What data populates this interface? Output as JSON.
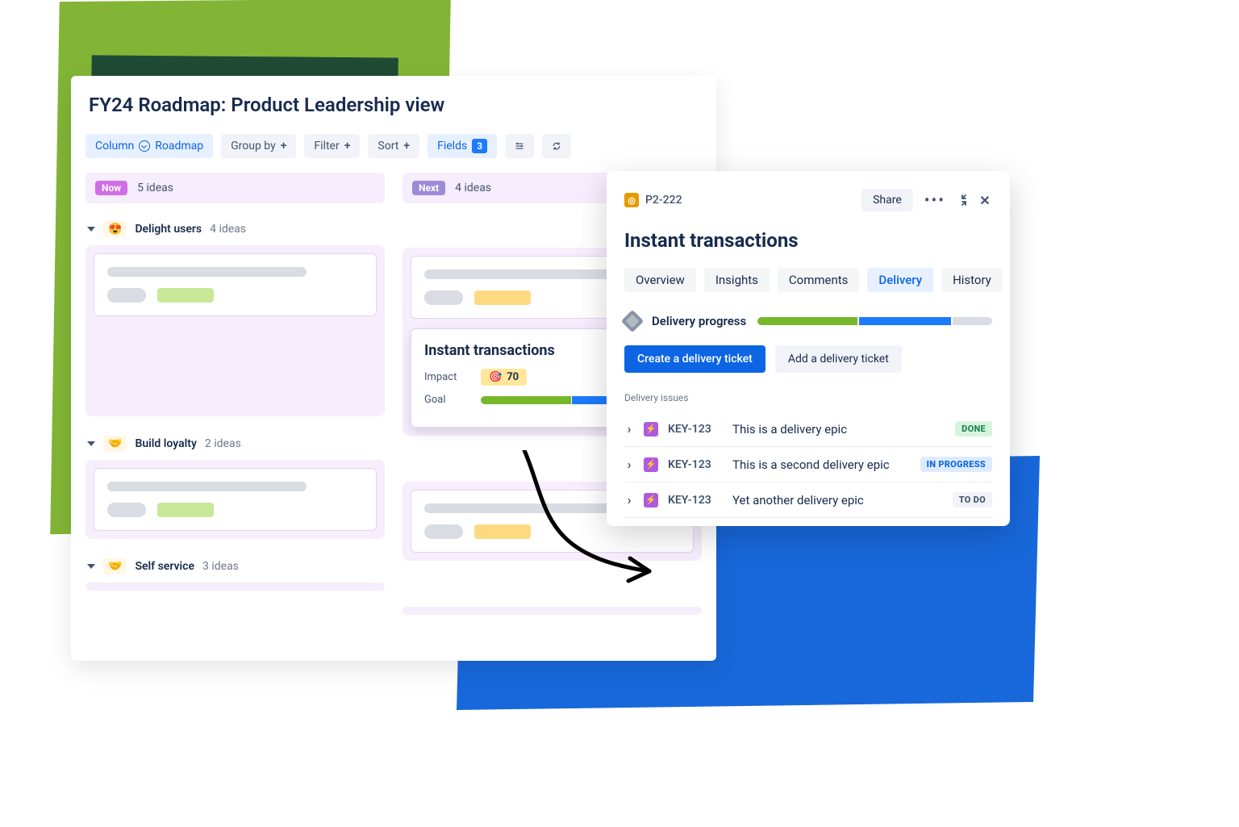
{
  "bg": {
    "green_light": "#82b536",
    "green_dark": "#1f4a34",
    "blue": "#1868db"
  },
  "board": {
    "title": "FY24 Roadmap: Product Leadership view",
    "toolbar": {
      "column": {
        "label": "Column",
        "value": "Roadmap"
      },
      "groupby": {
        "label": "Group by"
      },
      "filter": {
        "label": "Filter"
      },
      "sort": {
        "label": "Sort"
      },
      "fields": {
        "label": "Fields",
        "count": "3"
      }
    },
    "columns": [
      {
        "tag": "Now",
        "tag_color": "#d06ee6",
        "meta": "5 ideas"
      },
      {
        "tag": "Next",
        "tag_color": "#9b8ad6",
        "meta": "4 ideas"
      }
    ],
    "groups": [
      {
        "emoji": "😍",
        "emoji_bg": "#fff6e6",
        "name": "Delight users",
        "count": "4 ideas"
      },
      {
        "emoji": "🤝",
        "emoji_bg": "#fef3e6",
        "name": "Build loyalty",
        "count": "2 ideas"
      },
      {
        "emoji": "🤝",
        "emoji_bg": "#fef3e6",
        "name": "Self service",
        "count": "3 ideas"
      }
    ],
    "placeholder_colors": {
      "line": "#d9dce3",
      "pill_green": "#c9e897",
      "pill_yellow": "#fdd982"
    },
    "instant_card": {
      "title": "Instant transactions",
      "impact_label": "Impact",
      "impact_value": "70",
      "impact_icon": "🎯",
      "impact_bg": "#ffe69b",
      "goal_label": "Goal",
      "goal_segments": [
        {
          "color": "#76b82a",
          "pct": 63
        },
        {
          "color": "#1d7afc",
          "pct": 27
        },
        {
          "color": "#d9dce3",
          "pct": 10
        }
      ]
    },
    "zone_bg": "#f6edfd",
    "col_head_bg": "#f6edfd"
  },
  "detail": {
    "key_icon_bg": "#e69c00",
    "key": "P2-222",
    "share": "Share",
    "title": "Instant transactions",
    "tabs": [
      {
        "label": "Overview",
        "active": false
      },
      {
        "label": "Insights",
        "active": false
      },
      {
        "label": "Comments",
        "active": false
      },
      {
        "label": "Delivery",
        "active": true
      },
      {
        "label": "History",
        "active": false
      }
    ],
    "progress": {
      "label": "Delivery progress",
      "segments": [
        {
          "color": "#76b82a",
          "pct": 43
        },
        {
          "color": "#1d7afc",
          "pct": 40
        },
        {
          "color": "#d9dce3",
          "pct": 17
        }
      ]
    },
    "cta": {
      "primary": "Create a delivery ticket",
      "secondary": "Add a delivery ticket"
    },
    "issues_header": "Delivery issues",
    "issues": [
      {
        "key": "KEY-123",
        "title": "This is a delivery epic",
        "status": "DONE",
        "status_class": "done"
      },
      {
        "key": "KEY-123",
        "title": "This is a second delivery epic",
        "status": "IN PROGRESS",
        "status_class": "progress"
      },
      {
        "key": "KEY-123",
        "title": "Yet another delivery epic",
        "status": "TO DO",
        "status_class": "todo"
      }
    ],
    "epic_color": "#af59e1"
  }
}
